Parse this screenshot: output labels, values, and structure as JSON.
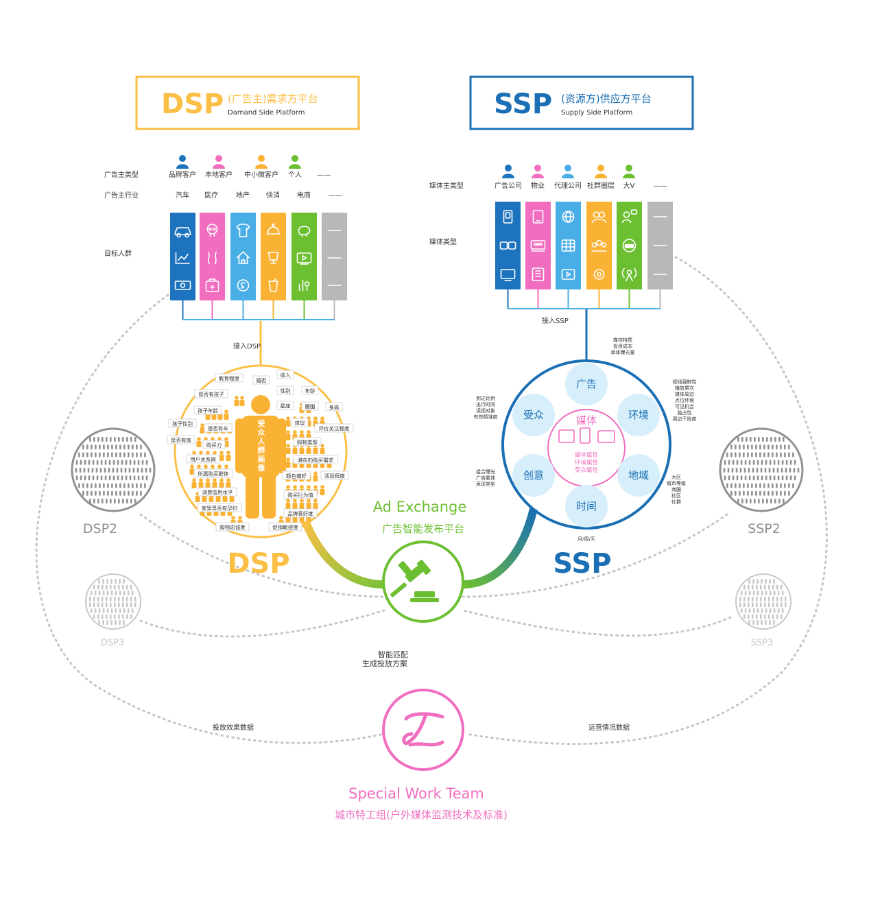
{
  "colors": {
    "dsp": "#fbbf45",
    "ssp": "#1a6fb5",
    "ax": "#6cbf31",
    "swt": "#f06dbf",
    "blue": "#1e73be",
    "pink": "#f06dbf",
    "sky": "#4aaee6",
    "orange": "#f9b233",
    "green": "#6cbf31",
    "gray": "#b8b8b8",
    "text": "#333333",
    "dotted": "#c6c6c6",
    "ssp_bubble": "#d7eefb"
  },
  "dsp_box": {
    "acronym": "DSP",
    "cn": "(广告主)需求方平台",
    "en": "Damand Side Platform"
  },
  "ssp_box": {
    "acronym": "SSP",
    "cn": "(资源方)供应方平台",
    "en": "Supply Side Platform"
  },
  "dsp_side": {
    "row_labels": [
      "广告主类型",
      "广告主行业",
      "目标人群"
    ],
    "advertiser_types": [
      "品牌客户",
      "本地客户",
      "中小微客户",
      "个人",
      "——"
    ],
    "industries": [
      "汽车",
      "医疗",
      "地产",
      "快消",
      "电商",
      "——"
    ],
    "connector_label": "接入DSP",
    "columns": [
      {
        "color": "blue",
        "icons": [
          "car-icon",
          "chart-icon",
          "money-icon"
        ]
      },
      {
        "color": "pink",
        "icons": [
          "skull-icon",
          "body-icon",
          "medkit-icon"
        ]
      },
      {
        "color": "sky",
        "icons": [
          "shirt-icon",
          "home-icon",
          "coin-icon"
        ]
      },
      {
        "color": "orange",
        "icons": [
          "cloche-icon",
          "cup-icon",
          "drink-icon"
        ]
      },
      {
        "color": "green",
        "icons": [
          "piggy-icon",
          "video-icon",
          "bars-icon"
        ]
      },
      {
        "color": "gray",
        "icons": [
          "dash",
          "dash",
          "dash"
        ]
      }
    ]
  },
  "ssp_side": {
    "row_labels": [
      "媒体主类型",
      "媒体类型"
    ],
    "media_owner_types": [
      "广告公司",
      "物业",
      "代理公司",
      "社群圈层",
      "大V",
      "——"
    ],
    "connector_label": "接入SSP",
    "columns": [
      {
        "color": "blue",
        "icons": [
          "door-icon",
          "screens-icon",
          "monitor-icon"
        ]
      },
      {
        "color": "pink",
        "icons": [
          "tablet-icon",
          "stage-icon",
          "building-icon"
        ]
      },
      {
        "color": "sky",
        "icons": [
          "globe-icon",
          "grid-icon",
          "play-icon"
        ]
      },
      {
        "color": "orange",
        "icons": [
          "people-icon",
          "group-icon",
          "gear-head-icon"
        ]
      },
      {
        "color": "green",
        "icons": [
          "person-chat-icon",
          "sms-icon",
          "antenna-icon"
        ]
      },
      {
        "color": "gray",
        "icons": [
          "dash",
          "dash",
          "dash"
        ]
      }
    ]
  },
  "persona": {
    "title": "受众人群画像",
    "tags": [
      "教育程度",
      "婚否",
      "收入",
      "是否有孩子",
      "性别",
      "年龄",
      "孩子年龄",
      "星座",
      "腰围",
      "身高",
      "孩子性别",
      "是否有车",
      "体型",
      "评价关注程度",
      "是否有房",
      "购买力",
      "购物类型",
      "用户关系网",
      "潜在的购买需求",
      "所属购买群体",
      "颜色偏好",
      "活跃程度",
      "消费信用水平",
      "购买行为值",
      "家里是否有孕妇",
      "品牌喜好度",
      "购物忠诚度",
      "促销敏感度"
    ],
    "big_label": "DSP"
  },
  "ssp_circle": {
    "center_title": "媒体",
    "center_attrs": [
      "媒体属性",
      "环境属性",
      "受众属性"
    ],
    "bubbles": [
      "广告",
      "环境",
      "地域",
      "时间",
      "创意",
      "受众"
    ],
    "note_ad": [
      "媒体特质",
      "投资成本",
      "单体曝光量"
    ],
    "note_env": [
      "视线强制性",
      "播放屏次",
      "媒体周边",
      "点位环境",
      "可见机会",
      "独占性",
      "周边干扰度"
    ],
    "note_region": [
      "大区",
      "城市等级",
      "商圈",
      "社区",
      "社群"
    ],
    "note_time": [
      "月/周/天"
    ],
    "note_creative": [
      "组合曝光",
      "广告载体",
      "表现类型"
    ],
    "note_audience": [
      "到达比例",
      "出行时间",
      "读视对象",
      "有效精准度"
    ],
    "big_label": "SSP"
  },
  "ad_exchange": {
    "title": "Ad Exchange",
    "subtitle": "广告智能发布平台"
  },
  "matching": [
    "智能匹配",
    "生成投放方案"
  ],
  "swt": {
    "title": "Special Work Team",
    "subtitle": "城市特工组(户外媒体监测技术及标准)",
    "logo": "swt-logo"
  },
  "loop_labels": {
    "left": "投放效果数据",
    "right": "运营情况数据"
  },
  "satellites": [
    "DSP2",
    "SSP2",
    "DSP3",
    "SSP3"
  ]
}
